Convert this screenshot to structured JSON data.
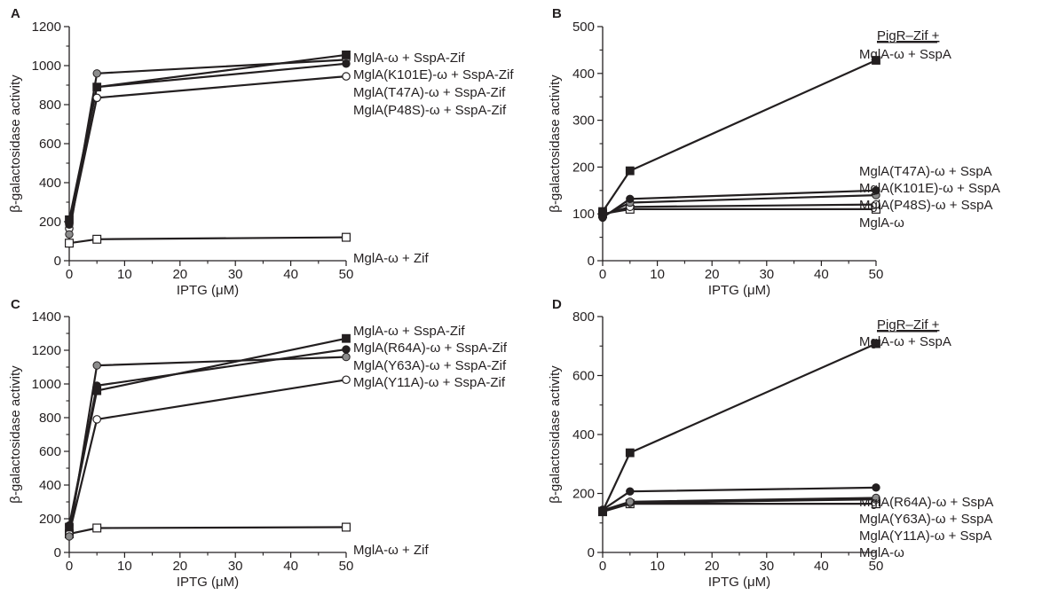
{
  "chart_data": [
    {
      "panel": "A",
      "type": "line",
      "xlabel": "IPTG (μM)",
      "ylabel": "β-galactosidase activity",
      "xlim": [
        0,
        50
      ],
      "ylim": [
        0,
        1200
      ],
      "xticks": [
        0,
        10,
        20,
        30,
        40,
        50
      ],
      "yticks": [
        0,
        200,
        400,
        600,
        800,
        1000,
        1200
      ],
      "x": [
        0,
        5,
        50
      ],
      "header": "",
      "series": [
        {
          "name": "MglA-ω + SspA-Zif",
          "marker": "square-filled",
          "values": [
            210,
            890,
            1055
          ]
        },
        {
          "name": "MglA(K101E)-ω + SspA-Zif",
          "marker": "circle-black",
          "values": [
            185,
            890,
            1010
          ]
        },
        {
          "name": "MglA(T47A)-ω + SspA-Zif",
          "marker": "circle-gray",
          "values": [
            135,
            960,
            1030
          ]
        },
        {
          "name": "MglA(P48S)-ω + SspA-Zif",
          "marker": "circle-open",
          "values": [
            165,
            835,
            945
          ]
        },
        {
          "name": "MglA-ω + Zif",
          "marker": "square-open",
          "values": [
            90,
            110,
            120
          ]
        }
      ]
    },
    {
      "panel": "B",
      "type": "line",
      "xlabel": "IPTG (μM)",
      "ylabel": "β-galactosidase activity",
      "xlim": [
        0,
        50
      ],
      "ylim": [
        0,
        500
      ],
      "xticks": [
        0,
        10,
        20,
        30,
        40,
        50
      ],
      "yticks": [
        0,
        100,
        200,
        300,
        400,
        500
      ],
      "x": [
        0,
        5,
        50
      ],
      "header": "PigR–Zif +",
      "series": [
        {
          "name": "MglA-ω + SspA",
          "marker": "square-filled",
          "values": [
            105,
            192,
            428
          ]
        },
        {
          "name": "MglA(T47A)-ω + SspA",
          "marker": "circle-black",
          "values": [
            92,
            132,
            150
          ]
        },
        {
          "name": "MglA(K101E)-ω + SspA",
          "marker": "circle-gray",
          "values": [
            95,
            124,
            140
          ]
        },
        {
          "name": "MglA(P48S)-ω + SspA",
          "marker": "circle-open",
          "values": [
            98,
            115,
            120
          ]
        },
        {
          "name": "MglA-ω",
          "marker": "square-open",
          "values": [
            100,
            110,
            110
          ]
        }
      ]
    },
    {
      "panel": "C",
      "type": "line",
      "xlabel": "IPTG (μM)",
      "ylabel": "β-galactosidase activity",
      "xlim": [
        0,
        50
      ],
      "ylim": [
        0,
        1400
      ],
      "xticks": [
        0,
        10,
        20,
        30,
        40,
        50
      ],
      "yticks": [
        0,
        200,
        400,
        600,
        800,
        1000,
        1200,
        1400
      ],
      "x": [
        0,
        5,
        50
      ],
      "header": "",
      "series": [
        {
          "name": "MglA-ω + SspA-Zif",
          "marker": "square-filled",
          "values": [
            150,
            960,
            1270
          ]
        },
        {
          "name": "MglA(R64A)-ω + SspA-Zif",
          "marker": "circle-black",
          "values": [
            160,
            990,
            1205
          ]
        },
        {
          "name": "MglA(Y63A)-ω + SspA-Zif",
          "marker": "circle-gray",
          "values": [
            95,
            1110,
            1160
          ]
        },
        {
          "name": "MglA(Y11A)-ω + SspA-Zif",
          "marker": "circle-open",
          "values": [
            110,
            790,
            1025
          ]
        },
        {
          "name": "MglA-ω + Zif",
          "marker": "square-open",
          "values": [
            110,
            145,
            150
          ]
        }
      ]
    },
    {
      "panel": "D",
      "type": "line",
      "xlabel": "IPTG (μM)",
      "ylabel": "β-galactosidase activity",
      "xlim": [
        0,
        50
      ],
      "ylim": [
        0,
        800
      ],
      "xticks": [
        0,
        10,
        20,
        30,
        40,
        50
      ],
      "yticks": [
        0,
        200,
        400,
        600,
        800
      ],
      "x": [
        0,
        5,
        50
      ],
      "header": "PigR–Zif +",
      "series": [
        {
          "name": "MglA-ω + SspA",
          "marker": "square-filled",
          "values": [
            140,
            338,
            708
          ]
        },
        {
          "name": "MglA(R64A)-ω + SspA",
          "marker": "circle-black",
          "values": [
            145,
            207,
            220
          ]
        },
        {
          "name": "MglA(Y63A)-ω + SspA",
          "marker": "circle-gray",
          "values": [
            143,
            172,
            185
          ]
        },
        {
          "name": "MglA(Y11A)-ω + SspA",
          "marker": "circle-open",
          "values": [
            140,
            168,
            180
          ]
        },
        {
          "name": "MglA-ω",
          "marker": "square-open",
          "values": [
            138,
            165,
            165
          ]
        }
      ]
    }
  ]
}
